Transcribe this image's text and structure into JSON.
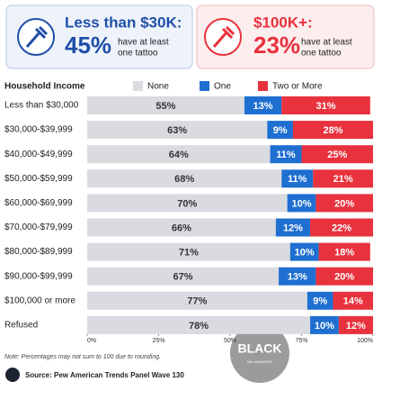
{
  "header": {
    "cards": [
      {
        "title": "Less than $30K:",
        "value": "45%",
        "line1": "have at least",
        "line2": "one tattoo"
      },
      {
        "title": "$100K+:",
        "value": "23%",
        "line1": "have at least",
        "line2": "one tattoo"
      }
    ]
  },
  "chart_data": {
    "type": "stacked-bar",
    "y_label": "Household Income",
    "categories": [
      "Less than $30,000",
      "$30,000-$39,999",
      "$40,000-$49,999",
      "$50,000-$59,999",
      "$60,000-$69,999",
      "$70,000-$79,999",
      "$80,000-$89,999",
      "$90,000-$99,999",
      "$100,000 or more",
      "Refused"
    ],
    "series": [
      {
        "name": "None",
        "color": "#d9dbe0",
        "values": [
          55,
          63,
          64,
          68,
          70,
          66,
          71,
          67,
          77,
          78
        ],
        "value_labels": [
          "55%",
          "63%",
          "64%",
          "68%",
          "70%",
          "66%",
          "71%",
          "67%",
          "77%",
          "78%"
        ]
      },
      {
        "name": "One",
        "color": "#1f6fd1",
        "values": [
          13,
          9,
          11,
          11,
          10,
          12,
          10,
          13,
          9,
          10
        ],
        "value_labels": [
          "13%",
          "9%",
          "11%",
          "11%",
          "10%",
          "12%",
          "10%",
          "13%",
          "9%",
          "10%"
        ]
      },
      {
        "name": "Two or More",
        "color": "#e8323e",
        "values": [
          31,
          28,
          25,
          21,
          20,
          22,
          18,
          20,
          14,
          12
        ],
        "value_labels": [
          "31%",
          "28%",
          "25%",
          "21%",
          "20%",
          "22%",
          "18%",
          "20%",
          "14%",
          "12%"
        ]
      }
    ],
    "xlim": [
      0,
      100
    ],
    "xticks": [
      {
        "value": 0,
        "label": "0%"
      },
      {
        "value": 25,
        "label": "25%"
      },
      {
        "value": 50,
        "label": "50%"
      },
      {
        "value": 75,
        "label": "75%"
      },
      {
        "value": 100,
        "label": "100%"
      }
    ],
    "note": "Note: Percentages may not sum to 100 due to rounding.",
    "source": "Source: Pew American Trends Panel Wave 130"
  },
  "watermark": {
    "title": "BLACK",
    "subtitle": "MILLIONAIRES"
  }
}
